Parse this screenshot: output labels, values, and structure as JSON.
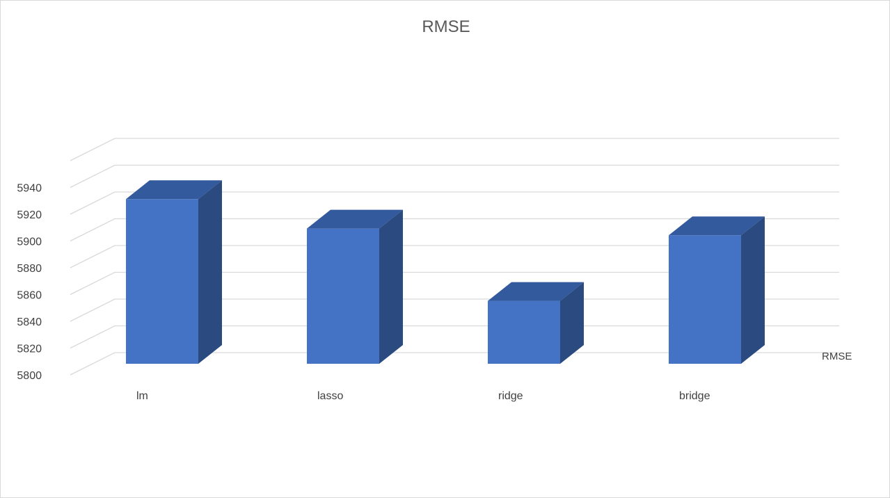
{
  "chart_data": {
    "type": "bar",
    "title": "RMSE",
    "categories": [
      "lm",
      "lasso",
      "ridge",
      "bridge"
    ],
    "series": [
      {
        "name": "RMSE",
        "values": [
          5924,
          5902,
          5848,
          5897
        ]
      }
    ],
    "ylim": [
      5800,
      5940
    ],
    "yticks": [
      5800,
      5820,
      5840,
      5860,
      5880,
      5900,
      5920,
      5940
    ],
    "grid": true,
    "legend": "depth-axis-label-right",
    "colors": {
      "bar_front": "#4472c4",
      "bar_top": "#335a9c",
      "bar_side": "#2a4a80"
    }
  }
}
